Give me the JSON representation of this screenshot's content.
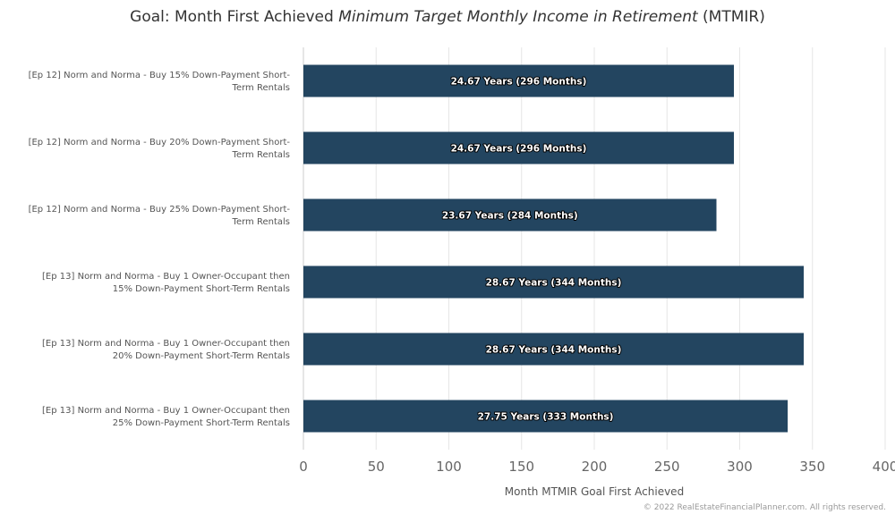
{
  "chart_data": {
    "type": "bar",
    "orientation": "horizontal",
    "title": "Goal: Month First Achieved",
    "title_italic": "Minimum Target Monthly Income in Retirement",
    "title_suffix": "(MTMIR)",
    "xlabel": "Month MTMIR Goal First Achieved",
    "ylabel": "",
    "xlim": [
      0,
      400
    ],
    "ticks": [
      0,
      50,
      100,
      150,
      200,
      250,
      300,
      350,
      400
    ],
    "grid": true,
    "bar_color": "#234560",
    "categories": [
      [
        "[Ep 12] Norm and Norma - Buy 15% Down-Payment Short-",
        "Term Rentals"
      ],
      [
        "[Ep 12] Norm and Norma - Buy 20% Down-Payment Short-",
        "Term Rentals"
      ],
      [
        "[Ep 12] Norm and Norma - Buy 25% Down-Payment Short-",
        "Term Rentals"
      ],
      [
        "[Ep 13] Norm and Norma - Buy 1 Owner-Occupant then",
        "15% Down-Payment Short-Term Rentals"
      ],
      [
        "[Ep 13] Norm and Norma - Buy 1 Owner-Occupant then",
        "20% Down-Payment Short-Term Rentals"
      ],
      [
        "[Ep 13] Norm and Norma - Buy 1 Owner-Occupant then",
        "25% Down-Payment Short-Term Rentals"
      ]
    ],
    "values": [
      296,
      296,
      284,
      344,
      344,
      333
    ],
    "data_labels": [
      "24.67 Years (296 Months)",
      "24.67 Years (296 Months)",
      "23.67 Years (284 Months)",
      "28.67 Years (344 Months)",
      "28.67 Years (344 Months)",
      "27.75 Years (333 Months)"
    ]
  },
  "credit": "© 2022 RealEstateFinancialPlanner.com. All rights reserved."
}
